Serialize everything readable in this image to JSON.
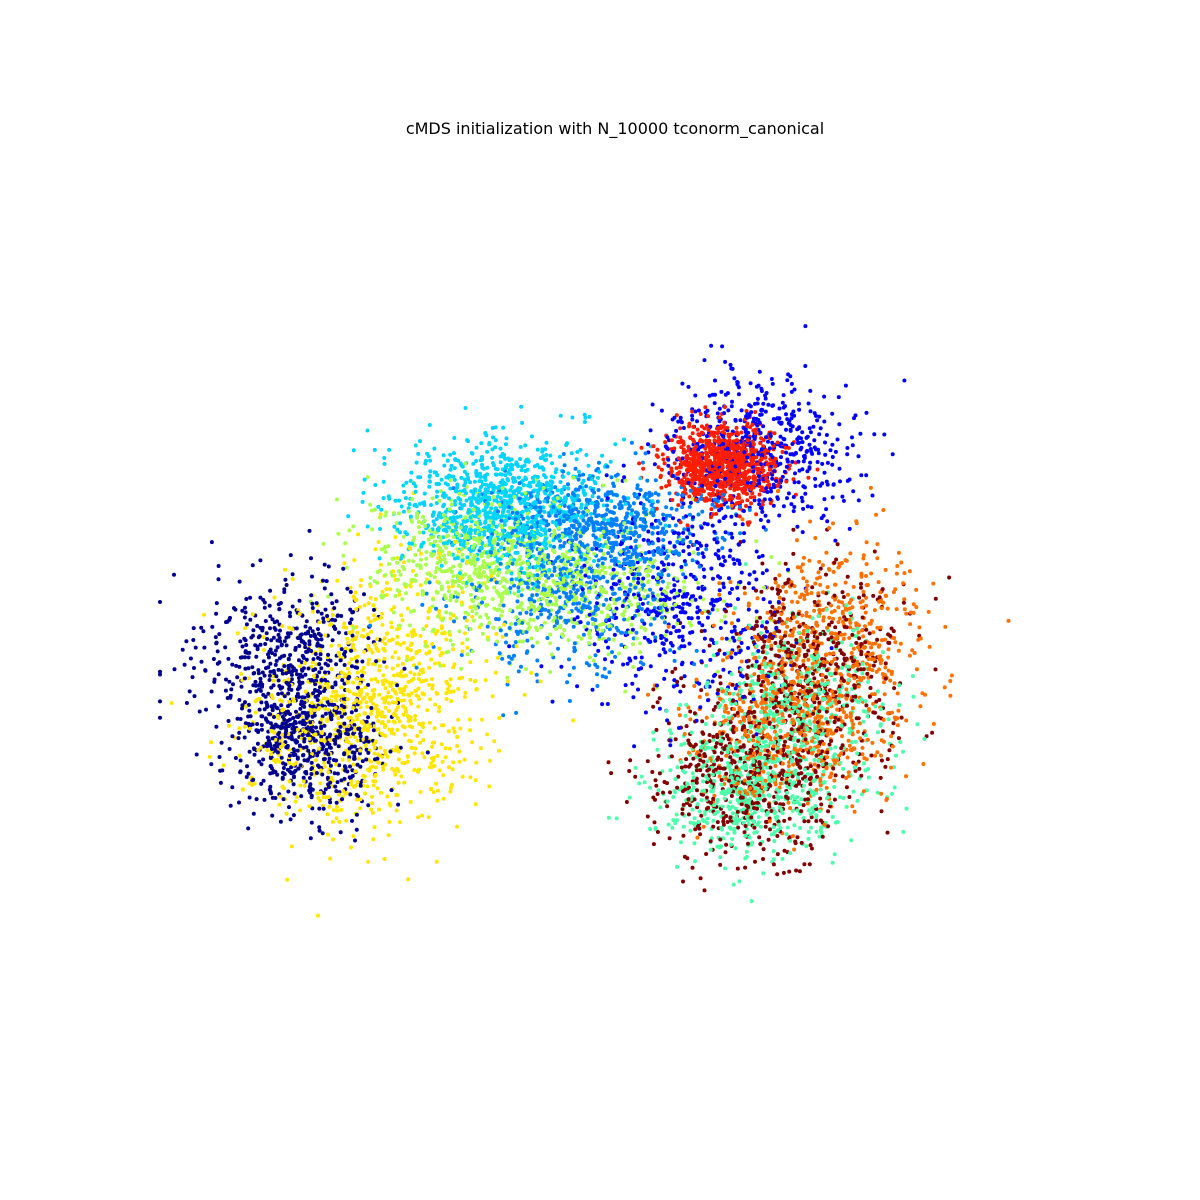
{
  "chart_data": {
    "type": "scatter",
    "title": "cMDS initialization with N_10000 tconorm_canonical",
    "xlabel": "",
    "ylabel": "",
    "axes_visible": false,
    "grid": false,
    "legend": "none",
    "point_count": 10000,
    "xlim": [
      -1.0,
      1.0
    ],
    "ylim": [
      -1.0,
      1.0
    ],
    "series": [
      {
        "color": "#00008f",
        "count": 1000,
        "clusters": [
          {
            "cx": -0.68,
            "cy": -0.32,
            "sx": 0.08,
            "sy": 0.09,
            "weight": 0.55
          },
          {
            "cx": -0.72,
            "cy": -0.1,
            "sx": 0.1,
            "sy": 0.1,
            "weight": 0.45
          }
        ]
      },
      {
        "color": "#0000ff",
        "count": 1000,
        "clusters": [
          {
            "cx": 0.32,
            "cy": 0.42,
            "sx": 0.1,
            "sy": 0.09,
            "weight": 0.55
          },
          {
            "cx": 0.14,
            "cy": 0.04,
            "sx": 0.12,
            "sy": 0.14,
            "weight": 0.45
          }
        ]
      },
      {
        "color": "#0080ff",
        "count": 1000,
        "clusters": [
          {
            "cx": -0.03,
            "cy": 0.24,
            "sx": 0.12,
            "sy": 0.06,
            "weight": 0.55
          },
          {
            "cx": -0.1,
            "cy": 0.05,
            "sx": 0.12,
            "sy": 0.1,
            "weight": 0.45
          }
        ]
      },
      {
        "color": "#00d4ff",
        "count": 1000,
        "clusters": [
          {
            "cx": -0.25,
            "cy": 0.28,
            "sx": 0.12,
            "sy": 0.08,
            "weight": 1.0
          }
        ]
      },
      {
        "color": "#4dffaa",
        "count": 1000,
        "clusters": [
          {
            "cx": 0.4,
            "cy": -0.25,
            "sx": 0.1,
            "sy": 0.12,
            "weight": 0.55
          },
          {
            "cx": 0.28,
            "cy": -0.45,
            "sx": 0.1,
            "sy": 0.08,
            "weight": 0.45
          }
        ]
      },
      {
        "color": "#aaff4d",
        "count": 1000,
        "clusters": [
          {
            "cx": -0.28,
            "cy": 0.14,
            "sx": 0.14,
            "sy": 0.09,
            "weight": 0.6
          },
          {
            "cx": -0.05,
            "cy": 0.05,
            "sx": 0.14,
            "sy": 0.08,
            "weight": 0.4
          }
        ]
      },
      {
        "color": "#ffe600",
        "count": 1000,
        "clusters": [
          {
            "cx": -0.47,
            "cy": -0.18,
            "sx": 0.1,
            "sy": 0.16,
            "weight": 0.6
          },
          {
            "cx": -0.62,
            "cy": -0.28,
            "sx": 0.1,
            "sy": 0.14,
            "weight": 0.4
          }
        ]
      },
      {
        "color": "#ff7100",
        "count": 1000,
        "clusters": [
          {
            "cx": 0.48,
            "cy": -0.08,
            "sx": 0.1,
            "sy": 0.14,
            "weight": 0.6
          },
          {
            "cx": 0.36,
            "cy": -0.3,
            "sx": 0.1,
            "sy": 0.1,
            "weight": 0.4
          }
        ]
      },
      {
        "color": "#ff1e00",
        "count": 1000,
        "clusters": [
          {
            "cx": 0.24,
            "cy": 0.38,
            "sx": 0.06,
            "sy": 0.05,
            "weight": 1.0
          }
        ]
      },
      {
        "color": "#800000",
        "count": 1000,
        "clusters": [
          {
            "cx": 0.43,
            "cy": -0.15,
            "sx": 0.1,
            "sy": 0.14,
            "weight": 0.55
          },
          {
            "cx": 0.28,
            "cy": -0.42,
            "sx": 0.1,
            "sy": 0.1,
            "weight": 0.45
          }
        ]
      }
    ]
  }
}
